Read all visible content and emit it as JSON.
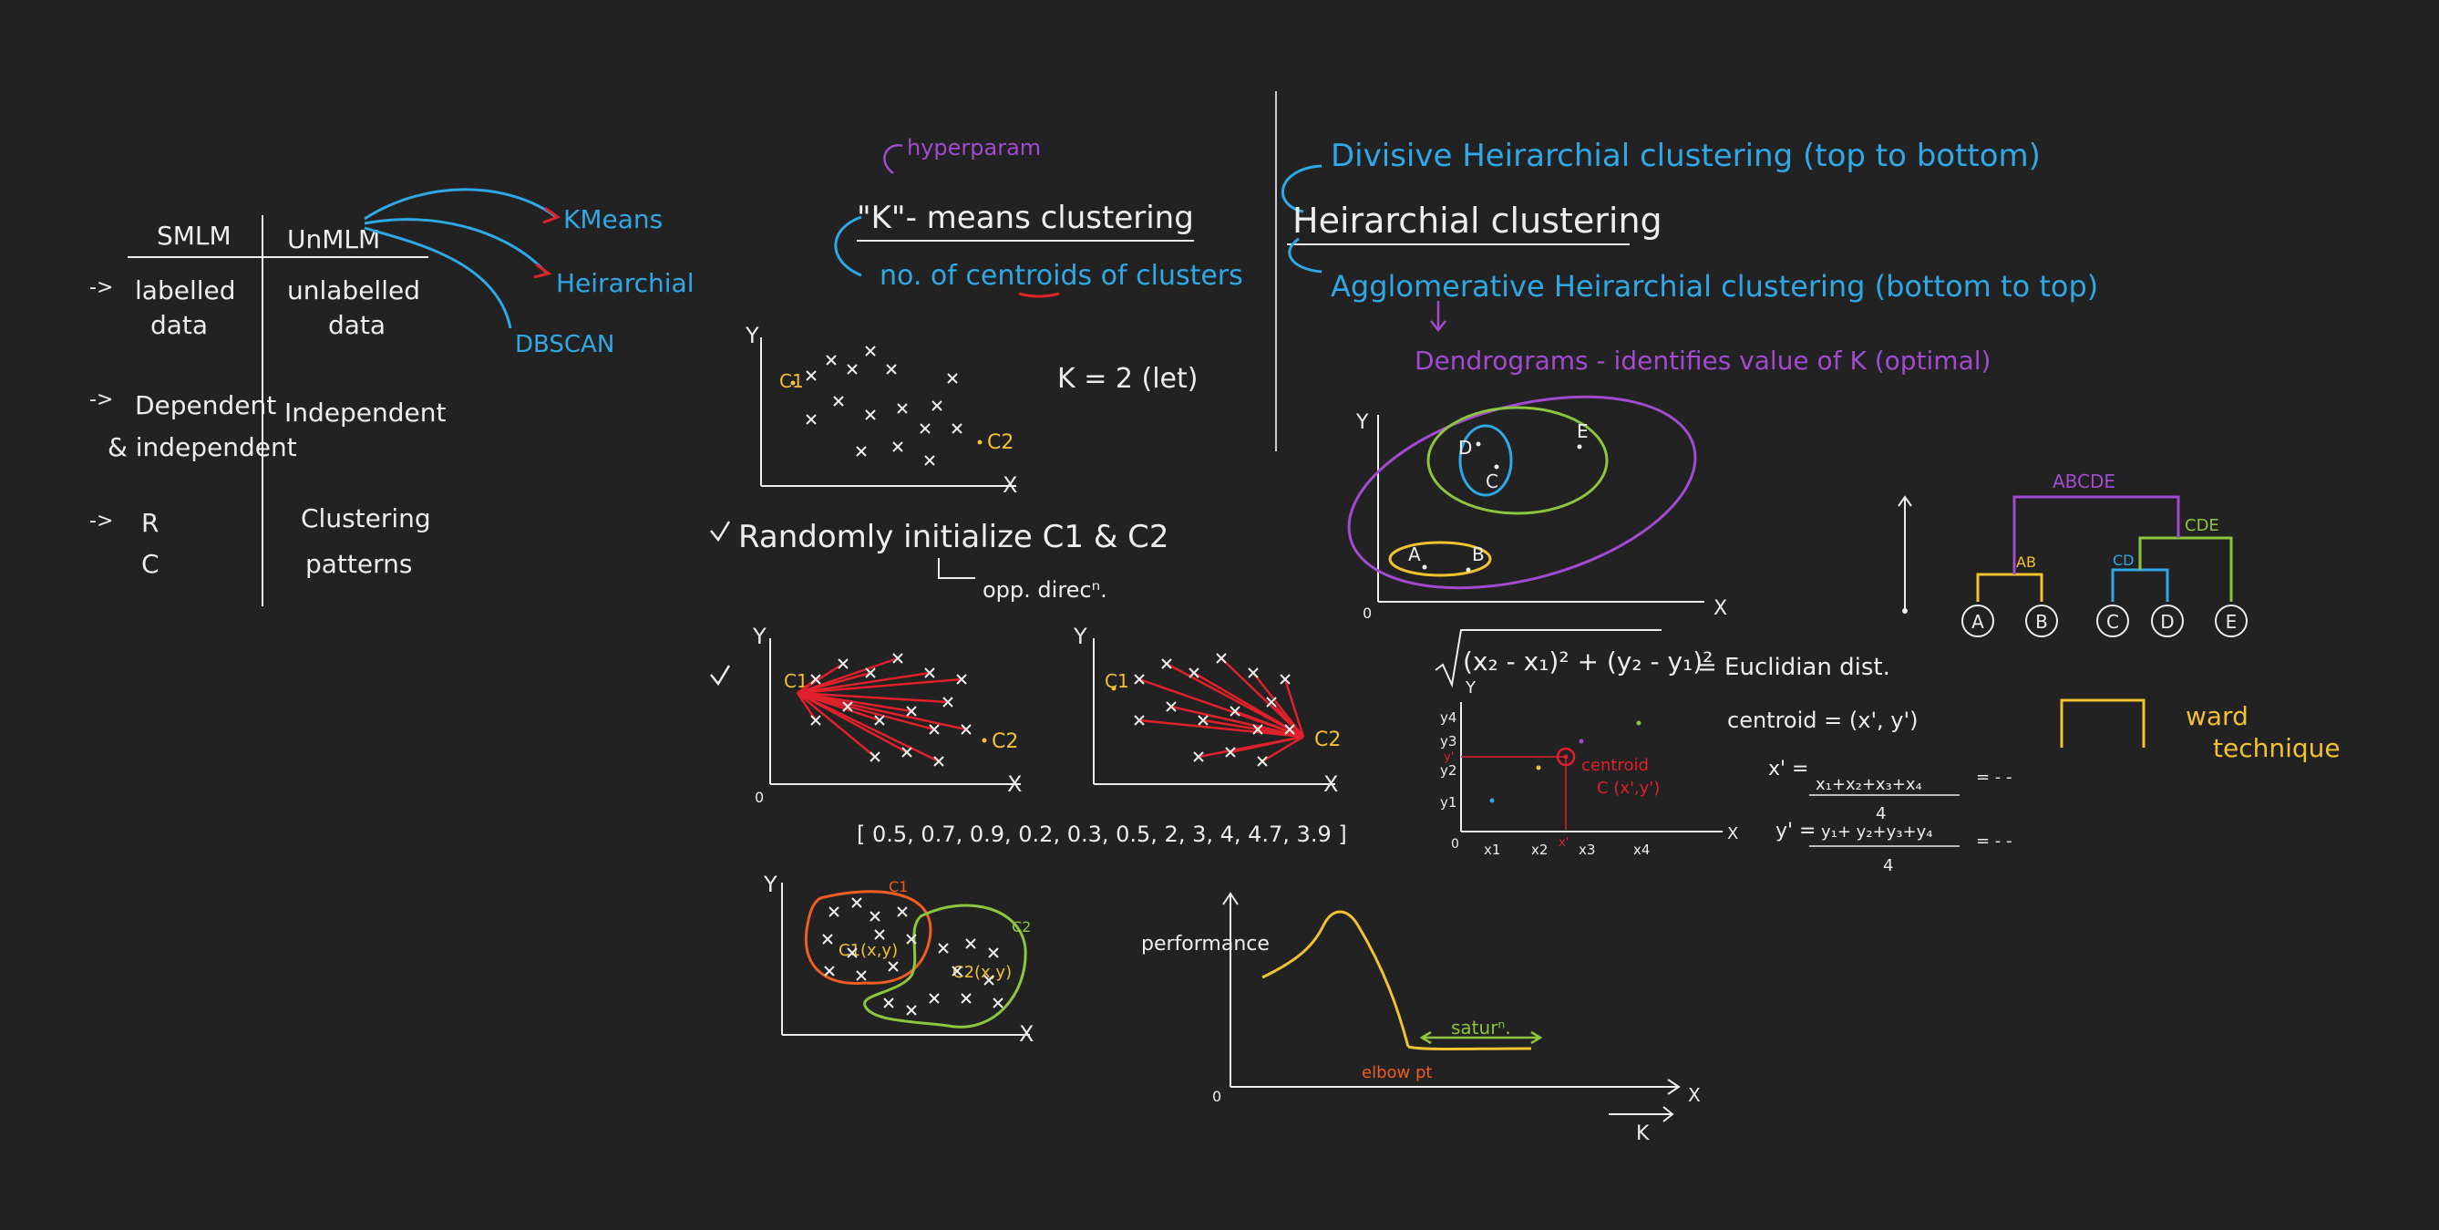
{
  "colors": {
    "background": "#222222",
    "white": "#eeeeee",
    "blue": "#2fa8e6",
    "purple": "#a24bd1",
    "red": "#e0202a",
    "yellow": "#f2c230",
    "green": "#8cc63f",
    "orange": "#ef5d20"
  },
  "table": {
    "col1": "SMLM",
    "col2": "UnMLM",
    "row1_left_a": "labelled",
    "row1_left_b": "data",
    "row1_right_a": "unlabelled",
    "row1_right_b": "data",
    "row2_left_a": "Dependent",
    "row2_left_b": "& independent",
    "row2_right": "Independent",
    "row3_left_a": "R",
    "row3_left_b": "C",
    "row3_right_a": "Clustering",
    "row3_right_b": "patterns",
    "arrow": "->"
  },
  "algorithms": {
    "kmeans": "KMeans",
    "hierarchical": "Heirarchial",
    "dbscan": "DBSCAN"
  },
  "kmeans": {
    "hyperparam": "hyperparam",
    "title": "\"K\"- means clustering",
    "subtitle": "no. of centroids of clusters",
    "k_let": "K = 2 (let)",
    "c1": "C1",
    "c2": "C2",
    "x_axis": "X",
    "y_axis": "Y",
    "origin": "0",
    "randomly": "Randomly initialize C1 & C2",
    "opp_direc": "opp. direcⁿ.",
    "distances": "[ 0.5, 0.7, 0.9, 0.2, 0.3, 0.5,  2, 3, 4, 4.7, 3.9 ]",
    "c1_full": "C1(x,y)",
    "c2_full": "C2(x,y)"
  },
  "elbow": {
    "ylabel": "performance",
    "xlabel": "K",
    "elbow_pt": "elbow pt",
    "saturation": "saturⁿ.",
    "origin": "0",
    "x_axis": "X"
  },
  "hierarchical": {
    "divisive": "Divisive Heirarchial clustering (top to bottom)",
    "title": "Heirarchial clustering",
    "agglomerative": "Agglomerative Heirarchial clustering (bottom to top)",
    "dendrograms": "Dendrograms - identifies value of K (optimal)",
    "points": [
      "A",
      "B",
      "C",
      "D",
      "E"
    ],
    "dendro_labels": {
      "top": "ABCDE",
      "cde": "CDE",
      "ab": "AB",
      "cd": "CD"
    },
    "ward": "ward",
    "technique": "technique",
    "origin": "0",
    "x_axis": "X",
    "y_axis": "Y"
  },
  "centroid": {
    "euclid": "= Euclidian dist.",
    "formula_a": "(x₂ - x₁)² + (y₂ - y₁)²",
    "centroid_eq": "centroid = (x', y')",
    "x_prime": "x' =",
    "x_num": "x₁+x₂+x₃+x₄",
    "y_prime": "y' =",
    "y_num": "y₁+ y₂+y₃+y₄",
    "den": "4",
    "dots": "= - -",
    "label": "centroid",
    "label2": "C (x',y')",
    "y_ticks": [
      "y4",
      "y3",
      "y2",
      "y1"
    ],
    "x_ticks": [
      "x1",
      "x2",
      "x'",
      "x3",
      "x4"
    ],
    "yprime_tick": "y'",
    "origin": "0",
    "x_axis": "X",
    "y_axis": "Y"
  }
}
